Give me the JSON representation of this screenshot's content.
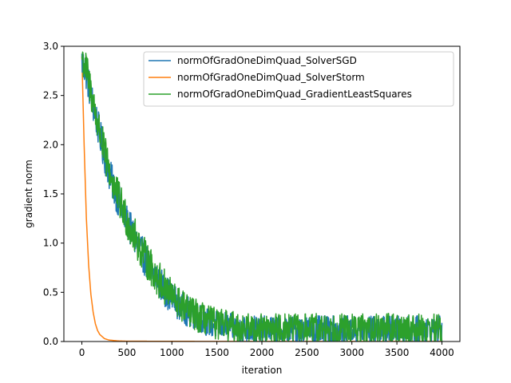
{
  "chart_data": {
    "type": "line",
    "title": "",
    "xlabel": "iteration",
    "ylabel": "gradient norm",
    "xlim": [
      -200,
      4200
    ],
    "ylim": [
      0,
      3.0
    ],
    "xticks": [
      0,
      500,
      1000,
      1500,
      2000,
      2500,
      3000,
      3500,
      4000
    ],
    "xtick_labels": [
      "0",
      "500",
      "1000",
      "1500",
      "2000",
      "2500",
      "3000",
      "3500",
      "4000"
    ],
    "yticks": [
      0.0,
      0.5,
      1.0,
      1.5,
      2.0,
      2.5,
      3.0
    ],
    "ytick_labels": [
      "0.0",
      "0.5",
      "1.0",
      "1.5",
      "2.0",
      "2.5",
      "3.0"
    ],
    "grid": false,
    "legend_position": "top-right",
    "series": [
      {
        "name": "normOfGradOneDimQuad_SolverSGD",
        "color": "#1f77b4",
        "x": [
          0,
          50,
          100,
          150,
          200,
          250,
          300,
          350,
          400,
          450,
          500,
          600,
          700,
          800,
          900,
          1000,
          1100,
          1200,
          1300,
          1400,
          1500,
          1750,
          2000,
          2500,
          3000,
          3500,
          4000
        ],
        "y": [
          2.85,
          2.72,
          2.5,
          2.3,
          2.1,
          1.9,
          1.72,
          1.58,
          1.45,
          1.33,
          1.22,
          1.02,
          0.84,
          0.68,
          0.55,
          0.44,
          0.36,
          0.29,
          0.24,
          0.2,
          0.17,
          0.13,
          0.12,
          0.12,
          0.12,
          0.12,
          0.12
        ]
      },
      {
        "name": "normOfGradOneDimQuad_SolverStorm",
        "color": "#ff7f0e",
        "x": [
          0,
          25,
          50,
          75,
          100,
          125,
          150,
          175,
          200,
          250,
          300,
          400,
          500,
          1000,
          1500,
          2000,
          4000
        ],
        "y": [
          2.9,
          2.0,
          1.25,
          0.78,
          0.48,
          0.3,
          0.18,
          0.11,
          0.07,
          0.03,
          0.015,
          0.006,
          0.003,
          0.002,
          0.001,
          0.001,
          0.001
        ]
      },
      {
        "name": "normOfGradOneDimQuad_GradientLeastSquares",
        "color": "#2ca02c",
        "x": [
          0,
          50,
          100,
          150,
          200,
          250,
          300,
          350,
          400,
          450,
          500,
          600,
          700,
          800,
          900,
          1000,
          1100,
          1200,
          1300,
          1400,
          1500,
          1750,
          2000,
          2500,
          3000,
          3500,
          4000
        ],
        "y": [
          2.9,
          2.75,
          2.55,
          2.32,
          2.12,
          1.92,
          1.75,
          1.6,
          1.47,
          1.35,
          1.24,
          1.04,
          0.86,
          0.7,
          0.57,
          0.46,
          0.37,
          0.3,
          0.25,
          0.21,
          0.18,
          0.14,
          0.13,
          0.13,
          0.13,
          0.13,
          0.13
        ]
      }
    ]
  }
}
